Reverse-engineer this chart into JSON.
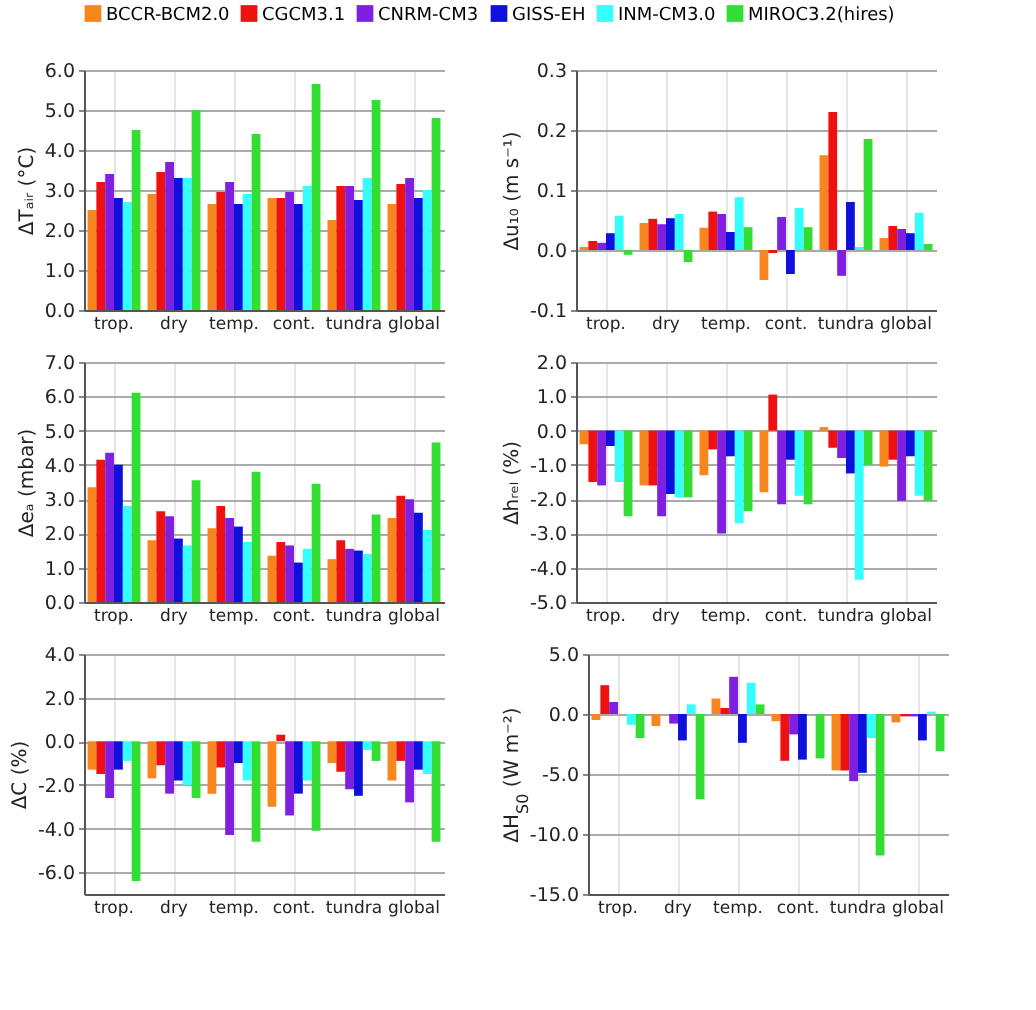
{
  "chart_data": [
    {
      "type": "bar",
      "ylabel": "ΔTₐᵢᵣ (°C)",
      "categories": [
        "trop.",
        "dry",
        "temp.",
        "cont.",
        "tundra",
        "global"
      ],
      "ylim": [
        0,
        6
      ],
      "yticks": [
        {
          "value": 0,
          "label": "0.0"
        },
        {
          "value": 1,
          "label": "1.0"
        },
        {
          "value": 2,
          "label": "2.0"
        },
        {
          "value": 3,
          "label": "3.0"
        },
        {
          "value": 4,
          "label": "4.0"
        },
        {
          "value": 5,
          "label": "5.0"
        },
        {
          "value": 6,
          "label": "6.0"
        }
      ],
      "grid": true,
      "legend": "top",
      "series": [
        {
          "name": "BCCR-BCM2.0",
          "color": "#f7861e",
          "values": [
            2.5,
            2.9,
            2.65,
            2.8,
            2.25,
            2.65
          ]
        },
        {
          "name": "CGCM3.1",
          "color": "#ee1111",
          "values": [
            3.2,
            3.45,
            2.95,
            2.8,
            3.1,
            3.15
          ]
        },
        {
          "name": "CNRM-CM3",
          "color": "#7f1fe0",
          "values": [
            3.4,
            3.7,
            3.2,
            2.95,
            3.1,
            3.3
          ]
        },
        {
          "name": "GISS-EH",
          "color": "#1010dd",
          "values": [
            2.8,
            3.3,
            2.65,
            2.65,
            2.75,
            2.8
          ]
        },
        {
          "name": "INM-CM3.0",
          "color": "#33ffff",
          "values": [
            2.7,
            3.3,
            2.9,
            3.1,
            3.3,
            3.0
          ]
        },
        {
          "name": "MIROC3.2(hires)",
          "color": "#33dd33",
          "values": [
            4.5,
            5.0,
            4.4,
            5.65,
            5.25,
            4.8
          ]
        }
      ]
    },
    {
      "type": "bar",
      "ylabel": "Δu₁₀ (m s⁻¹)",
      "categories": [
        "trop.",
        "dry",
        "temp.",
        "cont.",
        "tundra",
        "global"
      ],
      "ylim": [
        -0.1,
        0.3
      ],
      "yticks": [
        {
          "value": -0.1,
          "label": "-0.1"
        },
        {
          "value": 0,
          "label": "0.0"
        },
        {
          "value": 0.1,
          "label": "0.1"
        },
        {
          "value": 0.2,
          "label": "0.2"
        },
        {
          "value": 0.3,
          "label": "0.3"
        }
      ],
      "grid": true,
      "series": [
        {
          "name": "BCCR-BCM2.0",
          "color": "#f7861e",
          "values": [
            0.005,
            0.045,
            0.037,
            -0.05,
            0.158,
            0.02
          ]
        },
        {
          "name": "CGCM3.1",
          "color": "#ee1111",
          "values": [
            0.015,
            0.052,
            0.064,
            -0.005,
            0.23,
            0.04
          ]
        },
        {
          "name": "CNRM-CM3",
          "color": "#7f1fe0",
          "values": [
            0.012,
            0.043,
            0.06,
            0.055,
            -0.043,
            0.035
          ]
        },
        {
          "name": "GISS-EH",
          "color": "#1010dd",
          "values": [
            0.028,
            0.053,
            0.03,
            -0.04,
            0.08,
            0.028
          ]
        },
        {
          "name": "INM-CM3.0",
          "color": "#33ffff",
          "values": [
            0.057,
            0.06,
            0.088,
            0.07,
            0.005,
            0.062
          ]
        },
        {
          "name": "MIROC3.2(hires)",
          "color": "#33dd33",
          "values": [
            -0.008,
            -0.02,
            0.038,
            0.038,
            0.185,
            0.01
          ]
        }
      ]
    },
    {
      "type": "bar",
      "ylabel": "Δeₐ (mbar)",
      "categories": [
        "trop.",
        "dry",
        "temp.",
        "cont.",
        "tundra",
        "global"
      ],
      "ylim": [
        0,
        7
      ],
      "yticks": [
        {
          "value": 0,
          "label": "0.0"
        },
        {
          "value": 1,
          "label": "1.0"
        },
        {
          "value": 2,
          "label": "2.0"
        },
        {
          "value": 3,
          "label": "3.0"
        },
        {
          "value": 4,
          "label": "4.0"
        },
        {
          "value": 5,
          "label": "5.0"
        },
        {
          "value": 6,
          "label": "6.0"
        },
        {
          "value": 7,
          "label": "7.0"
        }
      ],
      "grid": true,
      "series": [
        {
          "name": "BCCR-BCM2.0",
          "color": "#f7861e",
          "values": [
            3.35,
            1.8,
            2.15,
            1.35,
            1.25,
            2.45
          ]
        },
        {
          "name": "CGCM3.1",
          "color": "#ee1111",
          "values": [
            4.15,
            2.65,
            2.8,
            1.75,
            1.8,
            3.1
          ]
        },
        {
          "name": "CNRM-CM3",
          "color": "#7f1fe0",
          "values": [
            4.35,
            2.5,
            2.45,
            1.65,
            1.55,
            3.0
          ]
        },
        {
          "name": "GISS-EH",
          "color": "#1010dd",
          "values": [
            4.0,
            1.85,
            2.2,
            1.15,
            1.5,
            2.6
          ]
        },
        {
          "name": "INM-CM3.0",
          "color": "#33ffff",
          "values": [
            2.8,
            1.65,
            1.75,
            1.55,
            1.4,
            2.1
          ]
        },
        {
          "name": "MIROC3.2(hires)",
          "color": "#33dd33",
          "values": [
            6.1,
            3.55,
            3.8,
            3.45,
            2.55,
            4.65
          ]
        }
      ]
    },
    {
      "type": "bar",
      "ylabel": "Δhᵣₑₗ (%)",
      "categories": [
        "trop.",
        "dry",
        "temp.",
        "cont.",
        "tundra",
        "global"
      ],
      "ylim": [
        -5,
        2
      ],
      "yticks": [
        {
          "value": -5,
          "label": "-5.0"
        },
        {
          "value": -4,
          "label": "-4.0"
        },
        {
          "value": -3,
          "label": "-3.0"
        },
        {
          "value": -2,
          "label": "-2.0"
        },
        {
          "value": -1,
          "label": "-1.0"
        },
        {
          "value": 0,
          "label": "0.0"
        },
        {
          "value": 1,
          "label": "1.0"
        },
        {
          "value": 2,
          "label": "2.0"
        }
      ],
      "grid": true,
      "series": [
        {
          "name": "BCCR-BCM2.0",
          "color": "#f7861e",
          "values": [
            -0.4,
            -1.6,
            -1.3,
            -1.8,
            0.1,
            -1.05
          ]
        },
        {
          "name": "CGCM3.1",
          "color": "#ee1111",
          "values": [
            -1.5,
            -1.6,
            -0.55,
            1.05,
            -0.5,
            -0.85
          ]
        },
        {
          "name": "CNRM-CM3",
          "color": "#7f1fe0",
          "values": [
            -1.6,
            -2.5,
            -3.0,
            -2.15,
            -0.8,
            -2.05
          ]
        },
        {
          "name": "GISS-EH",
          "color": "#1010dd",
          "values": [
            -0.45,
            -1.85,
            -0.75,
            -0.85,
            -1.25,
            -0.75
          ]
        },
        {
          "name": "INM-CM3.0",
          "color": "#33ffff",
          "values": [
            -1.5,
            -1.95,
            -2.7,
            -1.9,
            -4.35,
            -1.9
          ]
        },
        {
          "name": "MIROC3.2(hires)",
          "color": "#33dd33",
          "values": [
            -2.5,
            -1.95,
            -2.35,
            -2.15,
            -1.0,
            -2.05
          ]
        }
      ]
    },
    {
      "type": "bar",
      "ylabel": "ΔC (%)",
      "categories": [
        "trop.",
        "dry",
        "temp.",
        "cont.",
        "tundra",
        "global"
      ],
      "ylim": [
        -7,
        4
      ],
      "yticks": [
        {
          "value": -6,
          "label": "-6.0"
        },
        {
          "value": -4,
          "label": "-4.0"
        },
        {
          "value": -2,
          "label": "-2.0"
        },
        {
          "value": 0,
          "label": "0.0"
        },
        {
          "value": 2,
          "label": "2.0"
        },
        {
          "value": 4,
          "label": "4.0"
        }
      ],
      "grid": true,
      "series": [
        {
          "name": "BCCR-BCM2.0",
          "color": "#f7861e",
          "values": [
            -1.3,
            -1.7,
            -2.4,
            -3.0,
            -1.0,
            -1.8
          ]
        },
        {
          "name": "CGCM3.1",
          "color": "#ee1111",
          "values": [
            -1.5,
            -1.1,
            -1.2,
            0.3,
            -1.4,
            -0.9
          ]
        },
        {
          "name": "CNRM-CM3",
          "color": "#7f1fe0",
          "values": [
            -2.6,
            -2.4,
            -4.3,
            -3.4,
            -2.2,
            -2.8
          ]
        },
        {
          "name": "GISS-EH",
          "color": "#1010dd",
          "values": [
            -1.3,
            -1.8,
            -1.0,
            -2.4,
            -2.5,
            -1.3
          ]
        },
        {
          "name": "INM-CM3.0",
          "color": "#33ffff",
          "values": [
            -0.9,
            -2.0,
            -1.8,
            -1.8,
            -0.4,
            -1.5
          ]
        },
        {
          "name": "MIROC3.2(hires)",
          "color": "#33dd33",
          "values": [
            -6.4,
            -2.6,
            -4.6,
            -4.1,
            -0.9,
            -4.6
          ]
        }
      ]
    },
    {
      "type": "bar",
      "ylabel": "ΔH$_{S0}$ (W m⁻²)",
      "categories": [
        "trop.",
        "dry",
        "temp.",
        "cont.",
        "tundra",
        "global"
      ],
      "ylim": [
        -15,
        5
      ],
      "yticks": [
        {
          "value": -15,
          "label": "-15.0"
        },
        {
          "value": -10,
          "label": "-10.0"
        },
        {
          "value": -5,
          "label": "-5.0"
        },
        {
          "value": 0,
          "label": "0.0"
        },
        {
          "value": 5,
          "label": "5.0"
        }
      ],
      "grid": true,
      "series": [
        {
          "name": "BCCR-BCM2.0",
          "color": "#f7861e",
          "values": [
            -0.5,
            -1.0,
            1.3,
            -0.6,
            -4.7,
            -0.7
          ]
        },
        {
          "name": "CGCM3.1",
          "color": "#ee1111",
          "values": [
            2.4,
            0,
            0.5,
            -3.9,
            -4.7,
            -0.2
          ]
        },
        {
          "name": "CNRM-CM3",
          "color": "#7f1fe0",
          "values": [
            1.0,
            -0.8,
            3.1,
            -1.7,
            -5.6,
            -0.2
          ]
        },
        {
          "name": "GISS-EH",
          "color": "#1010dd",
          "values": [
            0,
            -2.2,
            -2.4,
            -3.8,
            -4.9,
            -2.2
          ]
        },
        {
          "name": "INM-CM3.0",
          "color": "#33ffff",
          "values": [
            -0.9,
            0.8,
            2.6,
            0,
            -2.0,
            0.2
          ]
        },
        {
          "name": "MIROC3.2(hires)",
          "color": "#33dd33",
          "values": [
            -2.0,
            -7.1,
            0.8,
            -3.7,
            -11.8,
            -3.1
          ]
        }
      ]
    }
  ]
}
